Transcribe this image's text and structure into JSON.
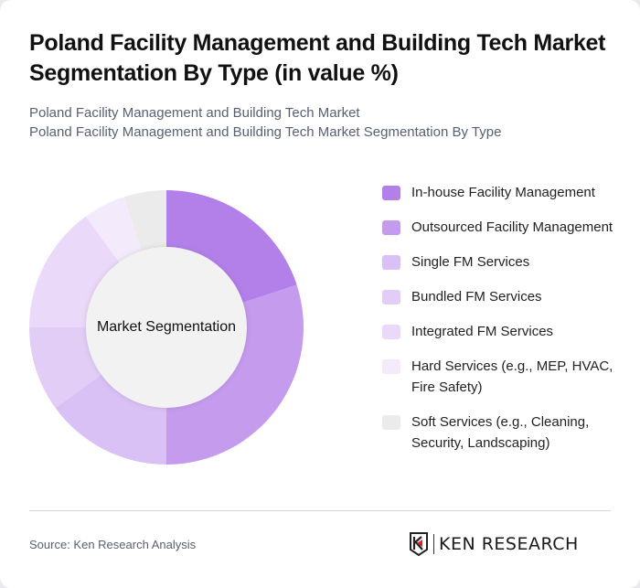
{
  "header": {
    "title": "Poland Facility Management and Building Tech Market Segmentation By Type (in value %)",
    "subtitle_line1": "Poland Facility Management and Building Tech Market",
    "subtitle_line2": "Poland Facility Management and Building Tech Market Segmentation By Type"
  },
  "chart": {
    "center_label": "Market Segmentation"
  },
  "legend": [
    {
      "label": "In-house Facility Management",
      "color": "#B380EA"
    },
    {
      "label": "Outsourced Facility Management",
      "color": "#C59BED"
    },
    {
      "label": "Single FM Services",
      "color": "#D9C0F5"
    },
    {
      "label": "Bundled FM Services",
      "color": "#E1CDF6"
    },
    {
      "label": "Integrated FM Services",
      "color": "#EAD9F8"
    },
    {
      "label": "Hard Services (e.g., MEP, HVAC, Fire Safety)",
      "color": "#F3EAFC"
    },
    {
      "label": "Soft Services (e.g., Cleaning, Security, Landscaping)",
      "color": "#EBEBEB"
    }
  ],
  "footer": {
    "source": "Source: Ken Research Analysis",
    "logo_text": "KEN RESEARCH"
  },
  "chart_data": {
    "type": "pie",
    "subtype": "donut",
    "title": "Poland Facility Management and Building Tech Market Segmentation By Type (in value %)",
    "center_label": "Market Segmentation",
    "categories": [
      "In-house Facility Management",
      "Outsourced Facility Management",
      "Single FM Services",
      "Bundled FM Services",
      "Integrated FM Services",
      "Hard Services (e.g., MEP, HVAC, Fire Safety)",
      "Soft Services (e.g., Cleaning, Security, Landscaping)"
    ],
    "values": [
      20,
      30,
      15,
      10,
      15,
      5,
      5
    ],
    "colors": [
      "#B380EA",
      "#C59BED",
      "#D9C0F5",
      "#E1CDF6",
      "#EAD9F8",
      "#F3EAFC",
      "#EBEBEB"
    ],
    "unit": "%",
    "legend_position": "right",
    "start_angle": "12 o'clock, clockwise"
  }
}
